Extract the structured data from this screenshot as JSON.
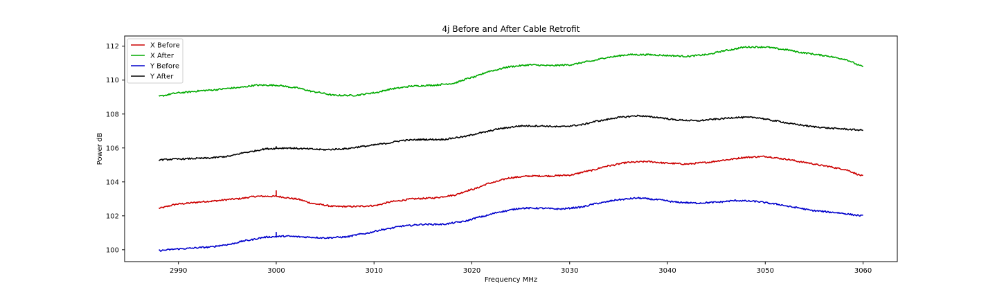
{
  "chart_data": {
    "type": "line",
    "title": "4j Before and After Cable Retrofit",
    "xlabel": "Frequency MHz",
    "ylabel": "Power dB",
    "xlim": [
      2984.5,
      3063.5
    ],
    "ylim": [
      99.3,
      112.6
    ],
    "xticks": [
      2990,
      3000,
      3010,
      3020,
      3030,
      3040,
      3050,
      3060
    ],
    "yticks": [
      100,
      102,
      104,
      106,
      108,
      110,
      112
    ],
    "grid": false,
    "legend_position": "upper-left",
    "series": [
      {
        "name": "X Before",
        "color": "#cc0000",
        "points": [
          [
            2988,
            102.45
          ],
          [
            2990,
            102.7
          ],
          [
            2993,
            102.85
          ],
          [
            2996,
            103.0
          ],
          [
            2998,
            103.15
          ],
          [
            3000,
            103.15
          ],
          [
            3002,
            103.0
          ],
          [
            3004,
            102.7
          ],
          [
            3006,
            102.55
          ],
          [
            3008,
            102.55
          ],
          [
            3010,
            102.6
          ],
          [
            3012,
            102.85
          ],
          [
            3014,
            103.0
          ],
          [
            3016,
            103.05
          ],
          [
            3018,
            103.2
          ],
          [
            3020,
            103.55
          ],
          [
            3022,
            103.95
          ],
          [
            3024,
            104.25
          ],
          [
            3026,
            104.35
          ],
          [
            3028,
            104.35
          ],
          [
            3030,
            104.4
          ],
          [
            3032,
            104.65
          ],
          [
            3034,
            104.95
          ],
          [
            3036,
            105.15
          ],
          [
            3038,
            105.2
          ],
          [
            3040,
            105.1
          ],
          [
            3042,
            105.05
          ],
          [
            3044,
            105.15
          ],
          [
            3046,
            105.3
          ],
          [
            3048,
            105.45
          ],
          [
            3050,
            105.5
          ],
          [
            3052,
            105.35
          ],
          [
            3054,
            105.15
          ],
          [
            3056,
            104.95
          ],
          [
            3058,
            104.75
          ],
          [
            3060,
            104.35
          ]
        ],
        "spikes": [
          [
            3000,
            103.5
          ]
        ]
      },
      {
        "name": "X After",
        "color": "#00aa00",
        "points": [
          [
            2988,
            109.05
          ],
          [
            2990,
            109.25
          ],
          [
            2993,
            109.4
          ],
          [
            2996,
            109.55
          ],
          [
            2998,
            109.7
          ],
          [
            3000,
            109.7
          ],
          [
            3002,
            109.55
          ],
          [
            3004,
            109.3
          ],
          [
            3006,
            109.1
          ],
          [
            3008,
            109.1
          ],
          [
            3010,
            109.25
          ],
          [
            3012,
            109.5
          ],
          [
            3014,
            109.65
          ],
          [
            3016,
            109.7
          ],
          [
            3018,
            109.8
          ],
          [
            3020,
            110.15
          ],
          [
            3022,
            110.55
          ],
          [
            3024,
            110.8
          ],
          [
            3026,
            110.9
          ],
          [
            3028,
            110.85
          ],
          [
            3030,
            110.9
          ],
          [
            3032,
            111.1
          ],
          [
            3034,
            111.35
          ],
          [
            3036,
            111.5
          ],
          [
            3038,
            111.5
          ],
          [
            3040,
            111.45
          ],
          [
            3042,
            111.4
          ],
          [
            3044,
            111.5
          ],
          [
            3046,
            111.75
          ],
          [
            3048,
            111.95
          ],
          [
            3050,
            111.95
          ],
          [
            3052,
            111.8
          ],
          [
            3054,
            111.6
          ],
          [
            3056,
            111.45
          ],
          [
            3058,
            111.25
          ],
          [
            3060,
            110.8
          ]
        ]
      },
      {
        "name": "Y Before",
        "color": "#0000cc",
        "points": [
          [
            2988,
            99.95
          ],
          [
            2990,
            100.05
          ],
          [
            2993,
            100.15
          ],
          [
            2995,
            100.3
          ],
          [
            2997,
            100.55
          ],
          [
            2999,
            100.75
          ],
          [
            3001,
            100.8
          ],
          [
            3003,
            100.75
          ],
          [
            3005,
            100.7
          ],
          [
            3007,
            100.75
          ],
          [
            3009,
            100.95
          ],
          [
            3011,
            101.2
          ],
          [
            3013,
            101.4
          ],
          [
            3015,
            101.5
          ],
          [
            3017,
            101.5
          ],
          [
            3019,
            101.65
          ],
          [
            3021,
            101.95
          ],
          [
            3023,
            102.25
          ],
          [
            3025,
            102.45
          ],
          [
            3027,
            102.45
          ],
          [
            3029,
            102.4
          ],
          [
            3031,
            102.5
          ],
          [
            3033,
            102.75
          ],
          [
            3035,
            102.95
          ],
          [
            3037,
            103.05
          ],
          [
            3039,
            102.95
          ],
          [
            3041,
            102.8
          ],
          [
            3043,
            102.75
          ],
          [
            3045,
            102.8
          ],
          [
            3047,
            102.9
          ],
          [
            3049,
            102.85
          ],
          [
            3051,
            102.7
          ],
          [
            3053,
            102.5
          ],
          [
            3055,
            102.3
          ],
          [
            3057,
            102.2
          ],
          [
            3060,
            102.0
          ]
        ],
        "spikes": [
          [
            3000,
            101.05
          ]
        ]
      },
      {
        "name": "Y After",
        "color": "#000000",
        "points": [
          [
            2988,
            105.3
          ],
          [
            2990,
            105.35
          ],
          [
            2993,
            105.4
          ],
          [
            2995,
            105.5
          ],
          [
            2997,
            105.75
          ],
          [
            2999,
            105.95
          ],
          [
            3001,
            106.0
          ],
          [
            3003,
            105.95
          ],
          [
            3005,
            105.9
          ],
          [
            3007,
            105.95
          ],
          [
            3009,
            106.1
          ],
          [
            3011,
            106.25
          ],
          [
            3013,
            106.45
          ],
          [
            3015,
            106.5
          ],
          [
            3017,
            106.5
          ],
          [
            3019,
            106.65
          ],
          [
            3021,
            106.9
          ],
          [
            3023,
            107.15
          ],
          [
            3025,
            107.3
          ],
          [
            3027,
            107.3
          ],
          [
            3029,
            107.25
          ],
          [
            3031,
            107.35
          ],
          [
            3033,
            107.6
          ],
          [
            3035,
            107.8
          ],
          [
            3037,
            107.9
          ],
          [
            3039,
            107.8
          ],
          [
            3041,
            107.65
          ],
          [
            3043,
            107.6
          ],
          [
            3045,
            107.7
          ],
          [
            3047,
            107.8
          ],
          [
            3049,
            107.8
          ],
          [
            3051,
            107.6
          ],
          [
            3053,
            107.4
          ],
          [
            3055,
            107.25
          ],
          [
            3057,
            107.15
          ],
          [
            3060,
            107.05
          ]
        ],
        "spikes": [
          [
            3000,
            106.1
          ]
        ]
      }
    ]
  }
}
